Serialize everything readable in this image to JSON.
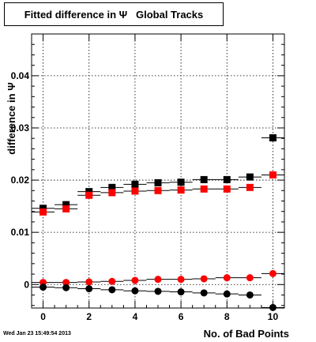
{
  "title": "Fitted difference in Ψ   Global Tracks",
  "date_stamp": "Wed Jan 23 15:49:54 2013",
  "chart_data": {
    "type": "scatter",
    "title": "Fitted difference in Ψ   Global Tracks",
    "xlabel": "No. of Bad Points",
    "ylabel": "difference in Ψ",
    "xlim": [
      -0.5,
      10.5
    ],
    "ylim": [
      -0.0045,
      0.048
    ],
    "x_ticks": [
      0,
      2,
      4,
      6,
      8,
      10
    ],
    "x_tick_labels": [
      "0",
      "2",
      "4",
      "6",
      "8",
      "10"
    ],
    "y_ticks": [
      0,
      0.01,
      0.02,
      0.03,
      0.04
    ],
    "y_tick_labels": [
      "0",
      "0.01",
      "0.02",
      "0.03",
      "0.04"
    ],
    "grid": true,
    "series": [
      {
        "marker": "square",
        "color": "#000000",
        "x": [
          0,
          1,
          2,
          3,
          4,
          5,
          6,
          7,
          8,
          9,
          10
        ],
        "y": [
          0.0146,
          0.0153,
          0.0178,
          0.0186,
          0.0192,
          0.0195,
          0.0196,
          0.0201,
          0.0201,
          0.0206,
          0.0281
        ]
      },
      {
        "marker": "square",
        "color": "#ff0000",
        "x": [
          0,
          1,
          2,
          3,
          4,
          5,
          6,
          7,
          8,
          9,
          10
        ],
        "y": [
          0.0139,
          0.0145,
          0.0171,
          0.0176,
          0.0179,
          0.018,
          0.0181,
          0.0183,
          0.0183,
          0.0186,
          0.021
        ]
      },
      {
        "marker": "circle",
        "color": "#ff0000",
        "x": [
          0,
          1,
          2,
          3,
          4,
          5,
          6,
          7,
          8,
          9,
          10
        ],
        "y": [
          0.0004,
          0.0004,
          0.0005,
          0.0006,
          0.0008,
          0.001,
          0.001,
          0.0011,
          0.0013,
          0.0013,
          0.0021
        ]
      },
      {
        "marker": "circle",
        "color": "#000000",
        "x": [
          0,
          1,
          2,
          3,
          4,
          5,
          6,
          7,
          8,
          9,
          10
        ],
        "y": [
          -0.0005,
          -0.0006,
          -0.0008,
          -0.001,
          -0.0012,
          -0.0013,
          -0.0014,
          -0.0016,
          -0.0018,
          -0.002,
          -0.0044
        ]
      }
    ]
  }
}
